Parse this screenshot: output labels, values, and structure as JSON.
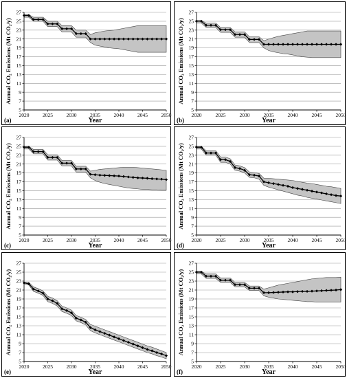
{
  "chart_data": [
    {
      "panel_label": "(a)",
      "type": "line",
      "xlabel": "Year",
      "ylabel": "Annual CO₂ Emissions (Mt CO₂/y)",
      "xlim": [
        2020,
        2050
      ],
      "ylim": [
        5,
        27
      ],
      "xticks": [
        2020,
        2025,
        2030,
        2035,
        2040,
        2045,
        2050
      ],
      "yticks": [
        5,
        7,
        9,
        11,
        13,
        15,
        17,
        19,
        21,
        23,
        25,
        27
      ],
      "grid": "horizontal",
      "x": [
        2020,
        2021,
        2022,
        2023,
        2024,
        2025,
        2026,
        2027,
        2028,
        2029,
        2030,
        2031,
        2032,
        2033,
        2034,
        2035,
        2036,
        2037,
        2038,
        2039,
        2040,
        2041,
        2042,
        2043,
        2044,
        2045,
        2046,
        2047,
        2048,
        2049,
        2050
      ],
      "series": [
        {
          "values": [
            26.3,
            26.3,
            25.4,
            25.4,
            25.4,
            24.4,
            24.4,
            24.4,
            23.3,
            23.3,
            23.3,
            22.2,
            22.2,
            22.2,
            21.0,
            21.0,
            21.0,
            21.0,
            21.0,
            21.0,
            21.0,
            21.0,
            21.0,
            21.0,
            21.0,
            21.0,
            21.0,
            21.0,
            21.0,
            21.0,
            21.0
          ]
        }
      ],
      "band": {
        "upper": [
          26.5,
          26.5,
          25.9,
          25.9,
          25.9,
          25.0,
          25.0,
          25.0,
          24.0,
          24.0,
          24.0,
          23.0,
          23.0,
          23.0,
          22.0,
          22.4,
          22.6,
          22.8,
          22.9,
          23.0,
          23.2,
          23.4,
          23.6,
          23.8,
          24.0,
          24.0,
          24.0,
          24.0,
          24.0,
          24.0,
          24.0
        ],
        "lower": [
          25.9,
          25.9,
          25.0,
          25.0,
          25.0,
          23.8,
          23.8,
          23.8,
          22.6,
          22.6,
          22.6,
          21.4,
          21.4,
          21.4,
          20.2,
          19.6,
          19.4,
          19.2,
          19.0,
          18.9,
          18.8,
          18.6,
          18.4,
          18.2,
          18.0,
          18.0,
          18.0,
          18.0,
          18.0,
          18.0,
          18.0
        ]
      }
    },
    {
      "panel_label": "(b)",
      "type": "line",
      "xlabel": "Year",
      "ylabel": "Annual CO₂ Emissions (Mt CO₂/y)",
      "xlim": [
        2020,
        2050
      ],
      "ylim": [
        5,
        27
      ],
      "xticks": [
        2020,
        2025,
        2030,
        2035,
        2040,
        2045,
        2050
      ],
      "yticks": [
        5,
        7,
        9,
        11,
        13,
        15,
        17,
        19,
        21,
        23,
        25,
        27
      ],
      "grid": "horizontal",
      "x": [
        2020,
        2021,
        2022,
        2023,
        2024,
        2025,
        2026,
        2027,
        2028,
        2029,
        2030,
        2031,
        2032,
        2033,
        2034,
        2035,
        2036,
        2037,
        2038,
        2039,
        2040,
        2041,
        2042,
        2043,
        2044,
        2045,
        2046,
        2047,
        2048,
        2049,
        2050
      ],
      "series": [
        {
          "values": [
            25.0,
            25.0,
            24.1,
            24.1,
            24.1,
            23.1,
            23.1,
            23.1,
            22.0,
            22.0,
            22.0,
            20.9,
            20.9,
            20.9,
            19.8,
            19.8,
            19.8,
            19.8,
            19.8,
            19.8,
            19.8,
            19.8,
            19.8,
            19.8,
            19.8,
            19.8,
            19.8,
            19.8,
            19.8,
            19.8,
            19.8
          ]
        }
      ],
      "band": {
        "upper": [
          25.2,
          25.2,
          24.6,
          24.6,
          24.6,
          23.6,
          23.6,
          23.6,
          22.6,
          22.6,
          22.6,
          21.5,
          21.5,
          21.5,
          20.6,
          21.0,
          21.3,
          21.6,
          21.8,
          22.0,
          22.2,
          22.4,
          22.6,
          22.8,
          22.8,
          22.8,
          22.8,
          22.8,
          22.8,
          22.8,
          22.8
        ],
        "lower": [
          24.6,
          24.6,
          23.6,
          23.6,
          23.6,
          22.5,
          22.5,
          22.5,
          21.4,
          21.4,
          21.4,
          20.2,
          20.2,
          20.2,
          19.0,
          18.4,
          18.1,
          17.9,
          17.7,
          17.6,
          17.4,
          17.2,
          17.0,
          16.9,
          16.8,
          16.8,
          16.8,
          16.8,
          16.8,
          16.8,
          16.8
        ]
      }
    },
    {
      "panel_label": "(c)",
      "type": "line",
      "xlabel": "Year",
      "ylabel": "Annual CO₂ Emissions (Mt CO₂/y)",
      "xlim": [
        2020,
        2050
      ],
      "ylim": [
        5,
        27
      ],
      "xticks": [
        2020,
        2025,
        2030,
        2035,
        2040,
        2045,
        2050
      ],
      "yticks": [
        5,
        7,
        9,
        11,
        13,
        15,
        17,
        19,
        21,
        23,
        25,
        27
      ],
      "grid": "horizontal",
      "x": [
        2020,
        2021,
        2022,
        2023,
        2024,
        2025,
        2026,
        2027,
        2028,
        2029,
        2030,
        2031,
        2032,
        2033,
        2034,
        2035,
        2036,
        2037,
        2038,
        2039,
        2040,
        2041,
        2042,
        2043,
        2044,
        2045,
        2046,
        2047,
        2048,
        2049,
        2050
      ],
      "series": [
        {
          "values": [
            24.8,
            24.8,
            23.8,
            23.8,
            23.8,
            22.5,
            22.5,
            22.5,
            21.2,
            21.2,
            21.2,
            19.9,
            19.9,
            19.9,
            18.7,
            18.6,
            18.5,
            18.45,
            18.4,
            18.35,
            18.3,
            18.2,
            18.1,
            18.0,
            17.9,
            17.85,
            17.8,
            17.7,
            17.65,
            17.6,
            17.5
          ]
        }
      ],
      "band": {
        "upper": [
          25.0,
          25.0,
          24.3,
          24.3,
          24.3,
          23.1,
          23.1,
          23.1,
          21.8,
          21.8,
          21.8,
          20.5,
          20.5,
          20.5,
          19.4,
          19.6,
          19.8,
          19.9,
          20.0,
          20.1,
          20.2,
          20.3,
          20.3,
          20.3,
          20.2,
          20.1,
          20.0,
          19.9,
          19.8,
          19.7,
          19.6
        ],
        "lower": [
          24.4,
          24.4,
          23.3,
          23.3,
          23.3,
          21.9,
          21.9,
          21.9,
          20.6,
          20.6,
          20.6,
          19.2,
          19.2,
          19.2,
          17.9,
          17.3,
          16.9,
          16.6,
          16.4,
          16.2,
          16.0,
          15.8,
          15.6,
          15.5,
          15.4,
          15.3,
          15.3,
          15.2,
          15.2,
          15.1,
          15.1
        ]
      }
    },
    {
      "panel_label": "(d)",
      "type": "line",
      "xlabel": "Year",
      "ylabel": "Annual CO₂ Emissions (Mt CO₂/y)",
      "xlim": [
        2020,
        2050
      ],
      "ylim": [
        5,
        27
      ],
      "xticks": [
        2020,
        2025,
        2030,
        2035,
        2040,
        2045,
        2050
      ],
      "yticks": [
        5,
        7,
        9,
        11,
        13,
        15,
        17,
        19,
        21,
        23,
        25,
        27
      ],
      "grid": "horizontal",
      "x": [
        2020,
        2021,
        2022,
        2023,
        2024,
        2025,
        2026,
        2027,
        2028,
        2029,
        2030,
        2031,
        2032,
        2033,
        2034,
        2035,
        2036,
        2037,
        2038,
        2039,
        2040,
        2041,
        2042,
        2043,
        2044,
        2045,
        2046,
        2047,
        2048,
        2049,
        2050
      ],
      "series": [
        {
          "values": [
            24.8,
            24.8,
            23.5,
            23.5,
            23.5,
            22.0,
            22.0,
            21.6,
            20.2,
            20.0,
            19.6,
            18.6,
            18.5,
            18.3,
            17.0,
            16.8,
            16.6,
            16.4,
            16.2,
            16.0,
            15.7,
            15.5,
            15.3,
            15.1,
            14.9,
            14.7,
            14.5,
            14.3,
            14.1,
            13.9,
            13.8
          ]
        }
      ],
      "band": {
        "upper": [
          25.0,
          25.0,
          24.0,
          24.0,
          24.0,
          22.6,
          22.6,
          22.2,
          20.8,
          20.6,
          20.2,
          19.2,
          19.1,
          18.9,
          17.8,
          17.8,
          17.7,
          17.6,
          17.5,
          17.4,
          17.3,
          17.1,
          16.9,
          16.7,
          16.6,
          16.4,
          16.2,
          16.0,
          15.9,
          15.7,
          15.5
        ],
        "lower": [
          24.4,
          24.4,
          23.0,
          23.0,
          23.0,
          21.4,
          21.4,
          21.0,
          19.6,
          19.4,
          19.0,
          18.0,
          17.9,
          17.6,
          16.2,
          15.8,
          15.5,
          15.2,
          14.9,
          14.6,
          14.3,
          14.0,
          13.8,
          13.5,
          13.3,
          13.1,
          12.9,
          12.7,
          12.5,
          12.3,
          12.1
        ]
      }
    },
    {
      "panel_label": "(e)",
      "type": "line",
      "xlabel": "Year",
      "ylabel": "Annual CO₂ Emissions (Mt CO₂/y)",
      "xlim": [
        2020,
        2050
      ],
      "ylim": [
        5,
        27
      ],
      "xticks": [
        2020,
        2025,
        2030,
        2035,
        2040,
        2045,
        2050
      ],
      "yticks": [
        5,
        7,
        9,
        11,
        13,
        15,
        17,
        19,
        21,
        23,
        25,
        27
      ],
      "grid": "horizontal",
      "x": [
        2020,
        2021,
        2022,
        2023,
        2024,
        2025,
        2026,
        2027,
        2028,
        2029,
        2030,
        2031,
        2032,
        2033,
        2034,
        2035,
        2036,
        2037,
        2038,
        2039,
        2040,
        2041,
        2042,
        2043,
        2044,
        2045,
        2046,
        2047,
        2048,
        2049,
        2050
      ],
      "series": [
        {
          "values": [
            22.6,
            22.4,
            21.2,
            20.8,
            20.3,
            19.0,
            18.6,
            18.0,
            16.8,
            16.4,
            15.9,
            14.7,
            14.3,
            13.8,
            12.6,
            12.1,
            11.7,
            11.3,
            10.9,
            10.5,
            10.1,
            9.7,
            9.3,
            8.9,
            8.5,
            8.1,
            7.7,
            7.4,
            7.0,
            6.7,
            6.3
          ]
        }
      ],
      "band": {
        "upper": [
          22.8,
          22.7,
          21.7,
          21.3,
          20.8,
          19.6,
          19.2,
          18.6,
          17.4,
          17.0,
          16.5,
          15.3,
          14.9,
          14.4,
          13.3,
          12.9,
          12.5,
          12.1,
          11.7,
          11.3,
          10.9,
          10.5,
          10.1,
          9.7,
          9.3,
          8.9,
          8.5,
          8.2,
          7.8,
          7.4,
          7.0
        ],
        "lower": [
          22.4,
          22.1,
          20.7,
          20.3,
          19.8,
          18.4,
          18.0,
          17.4,
          16.2,
          15.8,
          15.3,
          14.1,
          13.7,
          13.2,
          11.9,
          11.4,
          11.0,
          10.6,
          10.2,
          9.8,
          9.4,
          9.0,
          8.6,
          8.2,
          7.8,
          7.4,
          7.0,
          6.7,
          6.3,
          6.0,
          5.6
        ]
      }
    },
    {
      "panel_label": "(f)",
      "type": "line",
      "xlabel": "Year",
      "ylabel": "Annual CO₂ Emissions (Mt CO₂/y)",
      "xlim": [
        2020,
        2050
      ],
      "ylim": [
        5,
        27
      ],
      "xticks": [
        2020,
        2025,
        2030,
        2035,
        2040,
        2045,
        2050
      ],
      "yticks": [
        5,
        7,
        9,
        11,
        13,
        15,
        17,
        19,
        21,
        23,
        25,
        27
      ],
      "grid": "horizontal",
      "x": [
        2020,
        2021,
        2022,
        2023,
        2024,
        2025,
        2026,
        2027,
        2028,
        2029,
        2030,
        2031,
        2032,
        2033,
        2034,
        2035,
        2036,
        2037,
        2038,
        2039,
        2040,
        2041,
        2042,
        2043,
        2044,
        2045,
        2046,
        2047,
        2048,
        2049,
        2050
      ],
      "series": [
        {
          "values": [
            25.0,
            25.0,
            24.1,
            24.1,
            24.1,
            23.2,
            23.2,
            23.2,
            22.2,
            22.2,
            22.2,
            21.4,
            21.4,
            21.4,
            20.4,
            20.4,
            20.45,
            20.5,
            20.55,
            20.6,
            20.6,
            20.65,
            20.7,
            20.7,
            20.75,
            20.8,
            20.85,
            20.9,
            20.95,
            21.0,
            21.1
          ]
        }
      ],
      "band": {
        "upper": [
          25.2,
          25.2,
          24.6,
          24.6,
          24.6,
          23.7,
          23.7,
          23.7,
          22.7,
          22.7,
          22.7,
          21.9,
          21.9,
          21.9,
          21.2,
          21.5,
          21.8,
          22.1,
          22.3,
          22.5,
          22.7,
          22.9,
          23.1,
          23.3,
          23.5,
          23.6,
          23.7,
          23.8,
          23.8,
          23.8,
          23.9
        ],
        "lower": [
          24.6,
          24.6,
          23.6,
          23.6,
          23.6,
          22.7,
          22.7,
          22.7,
          21.7,
          21.7,
          21.7,
          20.9,
          20.9,
          20.9,
          19.7,
          19.4,
          19.2,
          19.0,
          18.9,
          18.8,
          18.7,
          18.6,
          18.5,
          18.4,
          18.4,
          18.3,
          18.3,
          18.3,
          18.3,
          18.3,
          18.3
        ]
      }
    }
  ]
}
